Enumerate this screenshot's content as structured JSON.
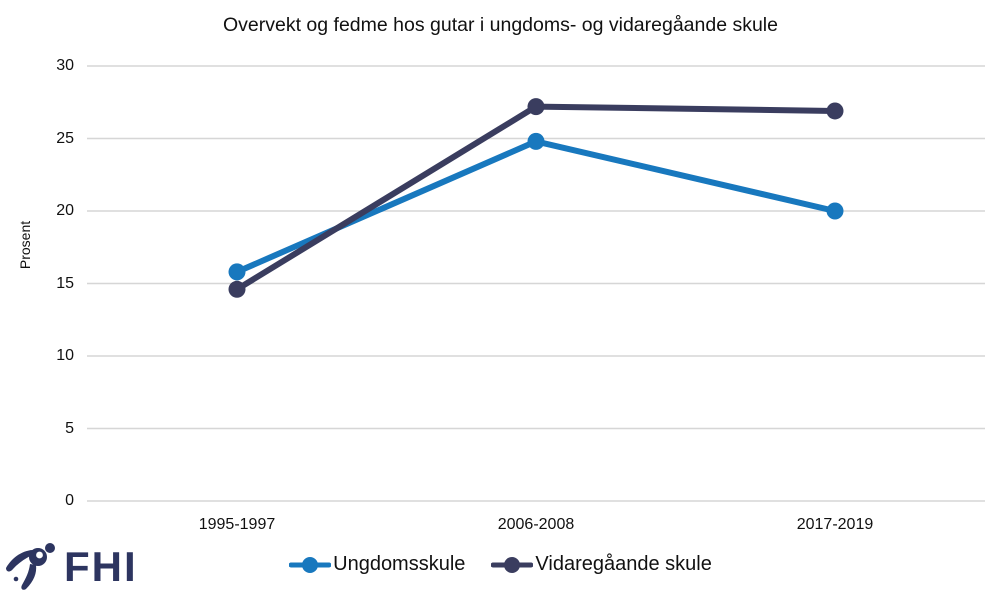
{
  "page": {
    "background": "#FFFFFF"
  },
  "logo": {
    "text": "FHI",
    "color": "#2D3560",
    "icon": "fhi-swoosh-icon"
  },
  "chart_data": {
    "type": "line",
    "title": "Overvekt og fedme hos gutar i ungdoms- og vidaregåande skule",
    "xlabel": "",
    "ylabel": "Prosent",
    "categories": [
      "1995-1997",
      "2006-2008",
      "2017-2019"
    ],
    "series": [
      {
        "name": "Ungdomsskule",
        "color": "#1878BE",
        "values": [
          15.8,
          24.8,
          20.0
        ]
      },
      {
        "name": "Vidaregåande skule",
        "color": "#3A3D5F",
        "values": [
          14.6,
          27.2,
          26.9
        ]
      }
    ],
    "ylim": [
      0,
      30
    ],
    "yticks": [
      0,
      5,
      10,
      15,
      20,
      25,
      30
    ],
    "grid": "horizontal",
    "gridline_color": "#D6D6D6",
    "legend_position": "bottom"
  }
}
